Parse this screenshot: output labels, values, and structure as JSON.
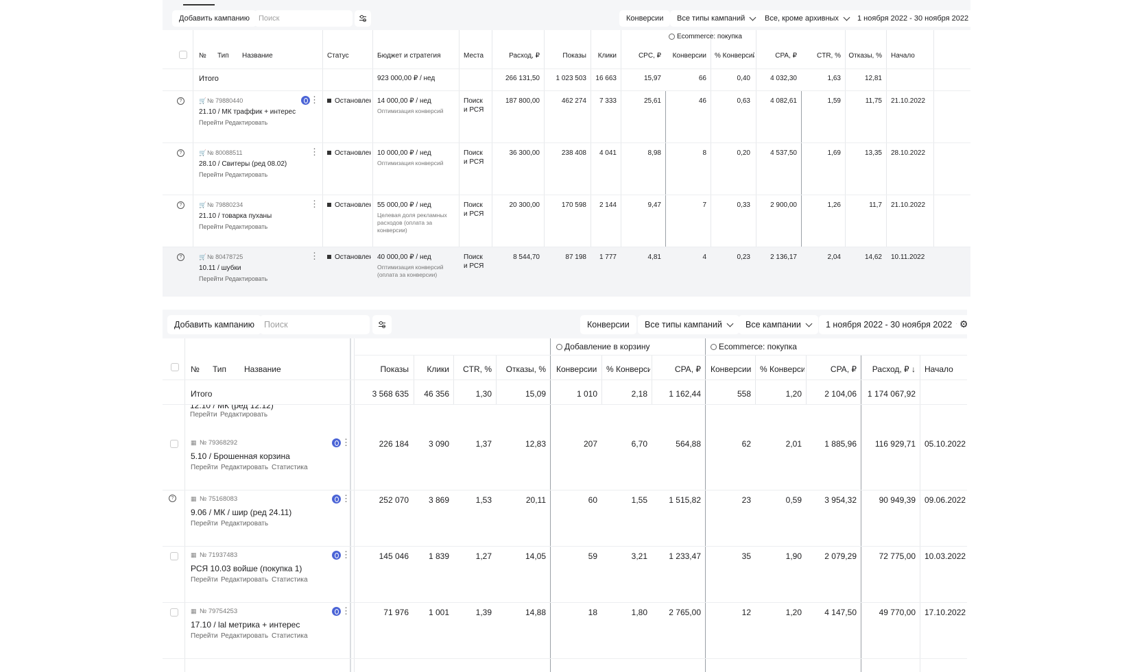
{
  "top": {
    "toolbar": {
      "add_campaign": "Добавить кампанию",
      "search_placeholder": "Поиск",
      "conversions": "Конверсии",
      "campaign_types": "Все типы кампаний",
      "archive_filter": "Все, кроме архивных",
      "date_range": "1 ноября 2022 - 30 ноября 2022"
    },
    "group_label": "Ecommerce: покупка",
    "headers": {
      "num": "№",
      "type": "Тип",
      "name": "Название",
      "status": "Статус",
      "budget": "Бюджет и стратегия",
      "places": "Места",
      "spend": "Расход, ₽",
      "impressions": "Показы",
      "clicks": "Клики",
      "cpc": "CPC, ₽",
      "conversions": "Конверсии",
      "conv_rate": "% Конверсий",
      "cpa": "CPA, ₽",
      "ctr": "CTR, %",
      "bounces": "Отказы, %",
      "start": "Начало"
    },
    "total": {
      "label": "Итого",
      "budget": "923 000,00 ₽ / нед",
      "spend": "266 131,50",
      "impressions": "1 023 503",
      "clicks": "16 663",
      "cpc": "15,97",
      "conversions": "66",
      "conv_rate": "0,40",
      "cpa": "4 032,30",
      "ctr": "1,63",
      "bounces": "12,81"
    },
    "rows": [
      {
        "id": "№ 79880440",
        "name": "21.10 / МК траффик + интерес",
        "go": "Перейти",
        "edit": "Редактировать",
        "status": "Остановлена",
        "budget": "14 000,00 ₽ / нед",
        "strategy": [
          "Оптимизация конверсий"
        ],
        "places": [
          "Поиск",
          "и РСЯ"
        ],
        "spend": "187 800,00",
        "impressions": "462 274",
        "clicks": "7 333",
        "cpc": "25,61",
        "conversions": "46",
        "conv_rate": "0,63",
        "cpa": "4 082,61",
        "ctr": "1,59",
        "bounces": "11,75",
        "start": "21.10.2022"
      },
      {
        "id": "№ 80088511",
        "name": "28.10 / Свитеры (ред 08.02)",
        "go": "Перейти",
        "edit": "Редактировать",
        "status": "Остановлена",
        "budget": "10 000,00 ₽ / нед",
        "strategy": [
          "Оптимизация конверсий"
        ],
        "places": [
          "Поиск",
          "и РСЯ"
        ],
        "spend": "36 300,00",
        "impressions": "238 408",
        "clicks": "4 041",
        "cpc": "8,98",
        "conversions": "8",
        "conv_rate": "0,20",
        "cpa": "4 537,50",
        "ctr": "1,69",
        "bounces": "13,35",
        "start": "28.10.2022"
      },
      {
        "id": "№ 79880234",
        "name": "21.10 / товарка пуханы",
        "go": "Перейти",
        "edit": "Редактировать",
        "status": "Остановлена",
        "budget": "55 000,00 ₽ / нед",
        "strategy": [
          "Целевая доля рекламных",
          "расходов (оплата за",
          "конверсии)"
        ],
        "places": [
          "Поиск",
          "и РСЯ"
        ],
        "spend": "20 300,00",
        "impressions": "170 598",
        "clicks": "2 144",
        "cpc": "9,47",
        "conversions": "7",
        "conv_rate": "0,33",
        "cpa": "2 900,00",
        "ctr": "1,26",
        "bounces": "11,7",
        "start": "21.10.2022"
      },
      {
        "id": "№ 80478725",
        "name": "10.11 / шубки",
        "go": "Перейти",
        "edit": "Редактировать",
        "status": "Остановлена",
        "budget": "40 000,00 ₽ / нед",
        "strategy": [
          "Оптимизация конверсий",
          "(оплата за конверсии)"
        ],
        "places": [
          "Поиск",
          "и РСЯ"
        ],
        "spend": "8 544,70",
        "impressions": "87 198",
        "clicks": "1 777",
        "cpc": "4,81",
        "conversions": "4",
        "conv_rate": "0,23",
        "cpa": "2 136,17",
        "ctr": "2,04",
        "bounces": "14,62",
        "start": "10.11.2022"
      }
    ]
  },
  "bottom": {
    "toolbar": {
      "add_campaign": "Добавить кампанию",
      "search_placeholder": "Поиск",
      "conversions": "Конверсии",
      "campaign_types": "Все типы кампаний",
      "campaign_filter": "Все кампании",
      "date_range": "1 ноября 2022 - 30 ноября 2022"
    },
    "group1": "Добавление в корзину",
    "group2": "Ecommerce: покупка",
    "headers": {
      "num": "№",
      "type": "Тип",
      "name": "Название",
      "impressions": "Показы",
      "clicks": "Клики",
      "ctr": "CTR, %",
      "bounces": "Отказы, %",
      "conversions1": "Конверсии",
      "conv_rate1": "% Конверсий",
      "cpa1": "CPA, ₽",
      "conversions2": "Конверсии",
      "conv_rate2": "% Конверсий",
      "cpa2": "CPA, ₽",
      "spend": "Расход, ₽ ↓",
      "start": "Начало"
    },
    "total": {
      "label": "Итого",
      "impressions": "3 568 635",
      "clicks": "46 356",
      "ctr": "1,30",
      "bounces": "15,09",
      "conversions1": "1 010",
      "conv_rate1": "2,18",
      "cpa1": "1 162,44",
      "conversions2": "558",
      "conv_rate2": "1,20",
      "cpa2": "2 104,06",
      "spend": "1 174 067,92"
    },
    "partial_row": {
      "name": "12.10 / МК (ред 12.12)",
      "go": "Перейти",
      "edit": "Редактировать"
    },
    "rows": [
      {
        "id": "№ 79368292",
        "name": "5.10 / Брошенная корзина",
        "go": "Перейти",
        "edit": "Редактировать",
        "stats": "Статистика",
        "impressions": "226 184",
        "clicks": "3 090",
        "ctr": "1,37",
        "bounces": "12,83",
        "conversions1": "207",
        "conv_rate1": "6,70",
        "cpa1": "564,88",
        "conversions2": "62",
        "conv_rate2": "2,01",
        "cpa2": "1 885,96",
        "spend": "116 929,71",
        "start": "05.10.2022"
      },
      {
        "id": "№ 75168083",
        "name": "9.06 / МК / шир (ред 24.11)",
        "go": "Перейти",
        "edit": "Редактировать",
        "stats": "",
        "impressions": "252 070",
        "clicks": "3 869",
        "ctr": "1,53",
        "bounces": "20,11",
        "conversions1": "60",
        "conv_rate1": "1,55",
        "cpa1": "1 515,82",
        "conversions2": "23",
        "conv_rate2": "0,59",
        "cpa2": "3 954,32",
        "spend": "90 949,39",
        "start": "09.06.2022"
      },
      {
        "id": "№ 71937483",
        "name": "РСЯ 10.03 войше (покупка 1)",
        "go": "Перейти",
        "edit": "Редактировать",
        "stats": "Статистика",
        "impressions": "145 046",
        "clicks": "1 839",
        "ctr": "1,27",
        "bounces": "14,05",
        "conversions1": "59",
        "conv_rate1": "3,21",
        "cpa1": "1 233,47",
        "conversions2": "35",
        "conv_rate2": "1,90",
        "cpa2": "2 079,29",
        "spend": "72 775,00",
        "start": "10.03.2022"
      },
      {
        "id": "№ 79754253",
        "name": "17.10 / lal метрика + интерес",
        "go": "Перейти",
        "edit": "Редактировать",
        "stats": "Статистика",
        "impressions": "71 976",
        "clicks": "1 001",
        "ctr": "1,39",
        "bounces": "14,88",
        "conversions1": "18",
        "conv_rate1": "1,80",
        "cpa1": "2 765,00",
        "conversions2": "12",
        "conv_rate2": "1,20",
        "cpa2": "4 147,50",
        "spend": "49 770,00",
        "start": "17.10.2022"
      }
    ]
  }
}
